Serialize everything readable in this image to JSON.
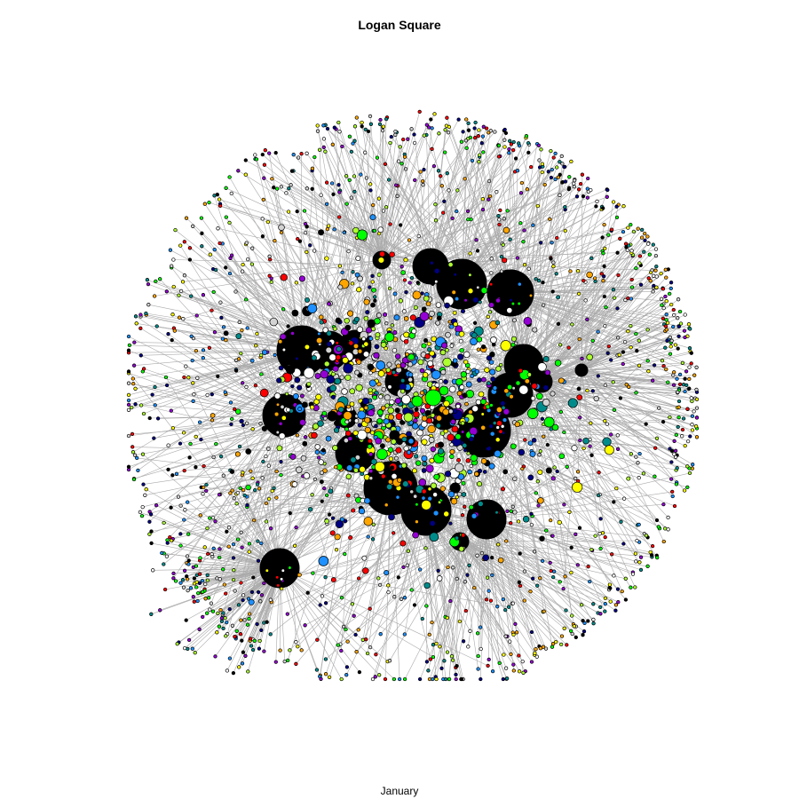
{
  "title": "Logan Square",
  "xlabel": "January",
  "palette": {
    "edge": "#aaaaaa",
    "node_outline": "#000000",
    "hub": "#000000",
    "node_colors": [
      "#00ff00",
      "#1e90ff",
      "#ffff00",
      "#d3d3d3",
      "#008b8b",
      "#ffa500",
      "#ff0000",
      "#9400d3",
      "#000080",
      "#ffffff",
      "#adff2f",
      "#000000"
    ]
  }
}
